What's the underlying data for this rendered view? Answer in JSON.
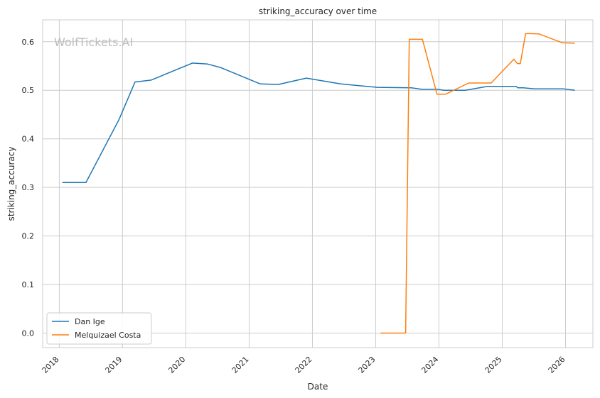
{
  "watermark": "WolfTickets.AI",
  "chart_data": {
    "type": "line",
    "title": "striking_accuracy over time",
    "xlabel": "Date",
    "ylabel": "striking_accuracy",
    "x_ticks": [
      "2018",
      "2019",
      "2020",
      "2021",
      "2022",
      "2023",
      "2024",
      "2025",
      "2026"
    ],
    "y_ticks": [
      "0.0",
      "0.1",
      "0.2",
      "0.3",
      "0.4",
      "0.5",
      "0.6"
    ],
    "xlim": [
      "2017-09-27",
      "2026-06-08"
    ],
    "ylim": [
      -0.03,
      0.645
    ],
    "grid": true,
    "legend": "lower-left",
    "series": [
      {
        "name": "Dan Ige",
        "color": "#1f77b4",
        "points": [
          [
            "2018-01-20",
            0.31
          ],
          [
            "2018-06-04",
            0.31
          ],
          [
            "2018-12-12",
            0.44
          ],
          [
            "2019-03-14",
            0.517
          ],
          [
            "2019-06-15",
            0.521
          ],
          [
            "2020-02-08",
            0.556
          ],
          [
            "2020-05-07",
            0.554
          ],
          [
            "2020-07-19",
            0.547
          ],
          [
            "2021-03-06",
            0.513
          ],
          [
            "2021-06-19",
            0.512
          ],
          [
            "2021-11-27",
            0.525
          ],
          [
            "2022-06-13",
            0.513
          ],
          [
            "2023-01-11",
            0.506
          ],
          [
            "2023-07-26",
            0.505
          ],
          [
            "2023-09-25",
            0.502
          ],
          [
            "2023-12-23",
            0.502
          ],
          [
            "2024-01-31",
            0.5
          ],
          [
            "2024-06-02",
            0.5
          ],
          [
            "2024-10-08",
            0.508
          ],
          [
            "2025-03-22",
            0.508
          ],
          [
            "2025-04-01",
            0.505
          ],
          [
            "2025-05-02",
            0.505
          ],
          [
            "2025-07-07",
            0.503
          ],
          [
            "2025-12-19",
            0.503
          ],
          [
            "2026-02-22",
            0.5
          ]
        ]
      },
      {
        "name": "Melquizael Costa",
        "color": "#ff7f0e",
        "points": [
          [
            "2023-01-31",
            0.0
          ],
          [
            "2023-06-23",
            0.0
          ],
          [
            "2023-07-14",
            0.605
          ],
          [
            "2023-09-28",
            0.605
          ],
          [
            "2023-12-21",
            0.492
          ],
          [
            "2024-02-09",
            0.492
          ],
          [
            "2024-06-21",
            0.515
          ],
          [
            "2024-10-29",
            0.515
          ],
          [
            "2025-03-09",
            0.564
          ],
          [
            "2025-03-29",
            0.555
          ],
          [
            "2025-04-15",
            0.555
          ],
          [
            "2025-05-16",
            0.617
          ],
          [
            "2025-08-01",
            0.616
          ],
          [
            "2025-12-12",
            0.598
          ],
          [
            "2026-02-22",
            0.597
          ]
        ]
      }
    ]
  }
}
